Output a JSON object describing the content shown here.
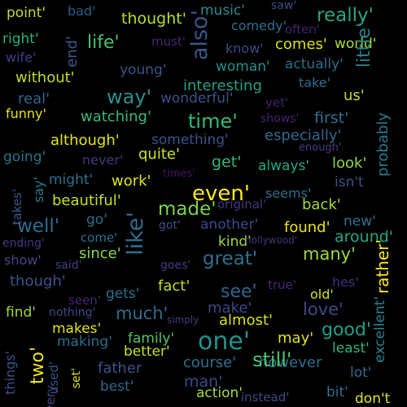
{
  "words": [
    {
      "text": "point'",
      "color": "#c8d530"
    },
    {
      "text": "bad'",
      "color": "#2b5d8e"
    },
    {
      "text": "thought'",
      "color": "#b6de2a"
    },
    {
      "text": "music'",
      "color": "#2d8e8b"
    },
    {
      "text": "saw'",
      "color": "#3b4d88"
    },
    {
      "text": "really'",
      "color": "#2fa385"
    },
    {
      "text": "right'",
      "color": "#29b47b"
    },
    {
      "text": "life'",
      "color": "#48c16e"
    },
    {
      "text": "must'",
      "color": "#46276f"
    },
    {
      "text": "also'",
      "color": "#3a558b"
    },
    {
      "text": "comedy'",
      "color": "#2e6e8e"
    },
    {
      "text": "often'",
      "color": "#46216f"
    },
    {
      "text": "end'",
      "color": "#3b5a8c"
    },
    {
      "text": "wife'",
      "color": "#403e85"
    },
    {
      "text": "know'",
      "color": "#3f4a88"
    },
    {
      "text": "comes'",
      "color": "#d8e219"
    },
    {
      "text": "world'",
      "color": "#aadc32"
    },
    {
      "text": "little'",
      "color": "#26828e"
    },
    {
      "text": "probably",
      "color": "#2a788e"
    },
    {
      "text": "woman'",
      "color": "#21918c"
    },
    {
      "text": "actually'",
      "color": "#2e6e8e"
    },
    {
      "text": "without'",
      "color": "#bade28"
    },
    {
      "text": "young'",
      "color": "#3a548c"
    },
    {
      "text": "interesting",
      "color": "#2a9c89"
    },
    {
      "text": "take'",
      "color": "#2e6e8e"
    },
    {
      "text": "real'",
      "color": "#31678e"
    },
    {
      "text": "way'",
      "color": "#2c8e8d"
    },
    {
      "text": "wonderful'",
      "color": "#3b528b"
    },
    {
      "text": "yet'",
      "color": "#461f6d"
    },
    {
      "text": "us'",
      "color": "#bddf26"
    },
    {
      "text": "funny'",
      "color": "#e7e419"
    },
    {
      "text": "watching'",
      "color": "#38b977"
    },
    {
      "text": "time'",
      "color": "#35b779"
    },
    {
      "text": "shows'",
      "color": "#46246e"
    },
    {
      "text": "first'",
      "color": "#2c718e"
    },
    {
      "text": "although'",
      "color": "#e2e418"
    },
    {
      "text": "something'",
      "color": "#3b528b"
    },
    {
      "text": "especially'",
      "color": "#31688e"
    },
    {
      "text": "going'",
      "color": "#2c738e"
    },
    {
      "text": "never'",
      "color": "#453781"
    },
    {
      "text": "quite'",
      "color": "#d2e21b"
    },
    {
      "text": "enough'",
      "color": "#433e85"
    },
    {
      "text": "look'",
      "color": "#8ed645"
    },
    {
      "text": "always'",
      "color": "#22a785"
    },
    {
      "text": "get'",
      "color": "#35b779"
    },
    {
      "text": "might'",
      "color": "#2e6f8e"
    },
    {
      "text": "times'",
      "color": "#471365"
    },
    {
      "text": "work'",
      "color": "#dde318"
    },
    {
      "text": "isn't",
      "color": "#3b528b"
    },
    {
      "text": "say'",
      "color": "#2a788e"
    },
    {
      "text": "takes'",
      "color": "#38598c"
    },
    {
      "text": "beautiful'",
      "color": "#c5e021"
    },
    {
      "text": "even'",
      "color": "#fde725"
    },
    {
      "text": "made'",
      "color": "#7ad151"
    },
    {
      "text": "seems'",
      "color": "#2e6f8e"
    },
    {
      "text": "back'",
      "color": "#a5db36"
    },
    {
      "text": "like'",
      "color": "#2e6e8e"
    },
    {
      "text": "original'",
      "color": "#453781"
    },
    {
      "text": "well'",
      "color": "#2f6c8e"
    },
    {
      "text": "go'",
      "color": "#2d708e"
    },
    {
      "text": "got'",
      "color": "#3b528b"
    },
    {
      "text": "another'",
      "color": "#3e4989"
    },
    {
      "text": "found'",
      "color": "#e7e419"
    },
    {
      "text": "new'",
      "color": "#2c728e"
    },
    {
      "text": "around'",
      "color": "#22a884"
    },
    {
      "text": "come'",
      "color": "#2e6e8e"
    },
    {
      "text": "kind'",
      "color": "#a8db34"
    },
    {
      "text": "hollywood'",
      "color": "#46327e"
    },
    {
      "text": "ending'",
      "color": "#443a83"
    },
    {
      "text": "since'",
      "color": "#86d549"
    },
    {
      "text": "great'",
      "color": "#2d708e"
    },
    {
      "text": "many'",
      "color": "#9fda3a"
    },
    {
      "text": "show'",
      "color": "#3f4788"
    },
    {
      "text": "said'",
      "color": "#424086"
    },
    {
      "text": "goes'",
      "color": "#433e85"
    },
    {
      "text": "though'",
      "color": "#3b528b"
    },
    {
      "text": "fact'",
      "color": "#bddf26"
    },
    {
      "text": "see'",
      "color": "#32648e"
    },
    {
      "text": "true'",
      "color": "#482878"
    },
    {
      "text": "hes'",
      "color": "#472d7b"
    },
    {
      "text": "rather'",
      "color": "#fde725"
    },
    {
      "text": "excellent'",
      "color": "#26828e"
    },
    {
      "text": "gets'",
      "color": "#2d718e"
    },
    {
      "text": "seen'",
      "color": "#482475"
    },
    {
      "text": "old'",
      "color": "#d2e21b"
    },
    {
      "text": "make'",
      "color": "#3f4788"
    },
    {
      "text": "nothing'",
      "color": "#3e4a89"
    },
    {
      "text": "find'",
      "color": "#a0da39"
    },
    {
      "text": "much'",
      "color": "#2f6b8e"
    },
    {
      "text": "simply",
      "color": "#443a83"
    },
    {
      "text": "almost'",
      "color": "#d5e21a"
    },
    {
      "text": "love'",
      "color": "#3f4788"
    },
    {
      "text": "makes'",
      "color": "#e4e419"
    },
    {
      "text": "good'",
      "color": "#1fa187"
    },
    {
      "text": "two'",
      "color": "#f1e51d"
    },
    {
      "text": "making'",
      "color": "#2d708e"
    },
    {
      "text": "family'",
      "color": "#52c569"
    },
    {
      "text": "one'",
      "color": "#21918c"
    },
    {
      "text": "may'",
      "color": "#e2e418"
    },
    {
      "text": "things'",
      "color": "#3b528b"
    },
    {
      "text": "used'",
      "color": "#3a548c"
    },
    {
      "text": "set'",
      "color": "#dde318"
    },
    {
      "text": "better'",
      "color": "#c8e020"
    },
    {
      "text": "least'",
      "color": "#2fb47c"
    },
    {
      "text": "course'",
      "color": "#2e6e8e"
    },
    {
      "text": "however",
      "color": "#2e6e8e"
    },
    {
      "text": "father",
      "color": "#3b528b"
    },
    {
      "text": "every",
      "color": "#414487"
    },
    {
      "text": "man'",
      "color": "#3e4989"
    },
    {
      "text": "lot'",
      "color": "#2f6c8e"
    },
    {
      "text": "best'",
      "color": "#31688e"
    },
    {
      "text": "still'",
      "color": "#4cc26c"
    },
    {
      "text": "action'",
      "color": "#a5db36"
    },
    {
      "text": "instead'",
      "color": "#3e4a89"
    },
    {
      "text": "bit'",
      "color": "#2d708e"
    },
    {
      "text": "don't",
      "color": "#e2e418"
    }
  ]
}
